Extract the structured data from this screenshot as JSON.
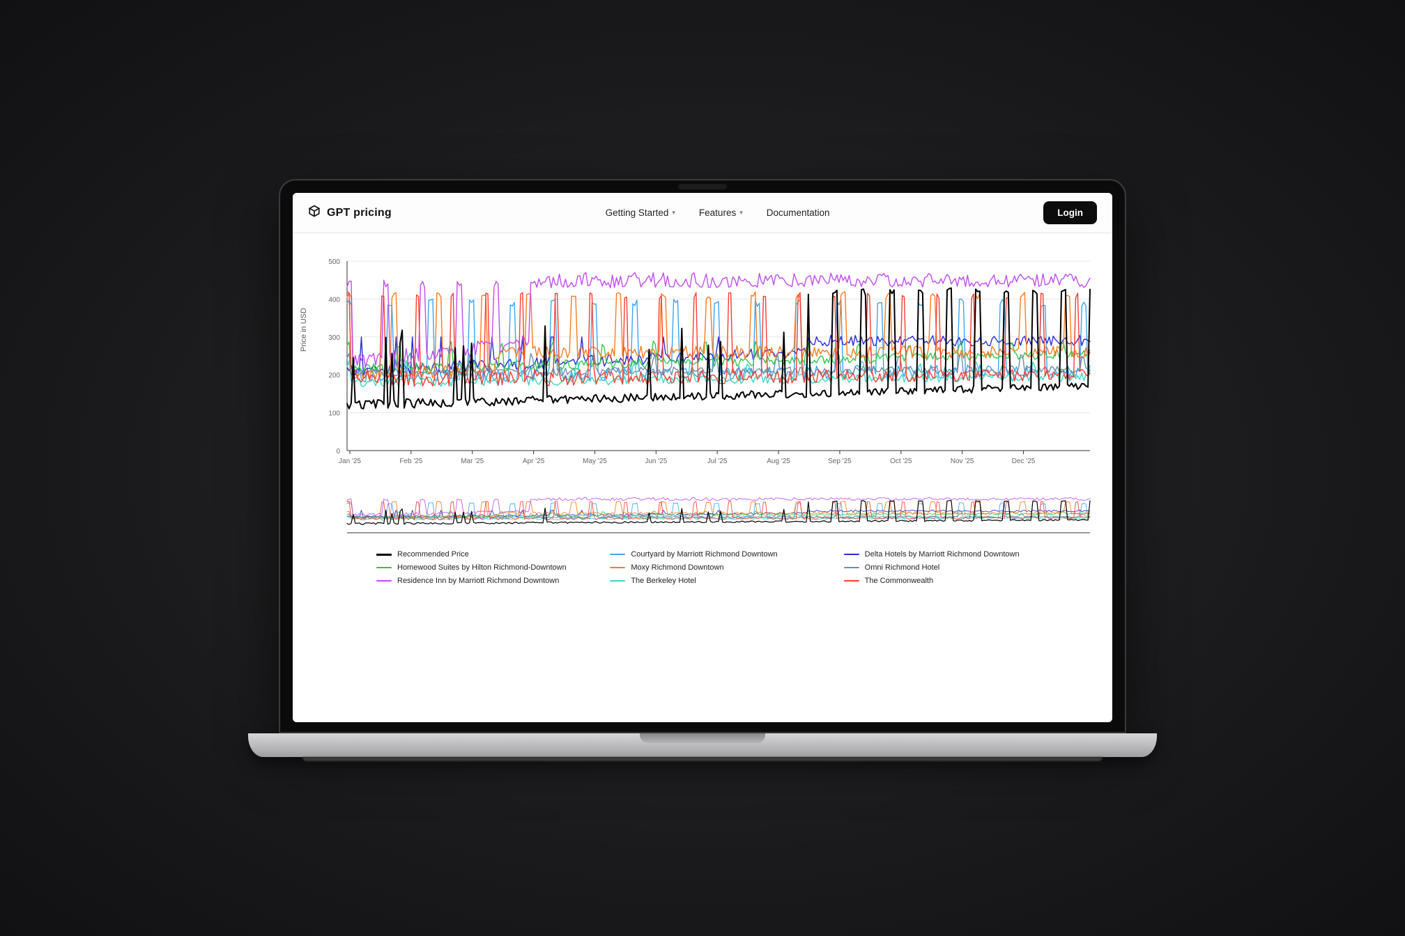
{
  "background_gradient": [
    "#2a2a2c",
    "#1a1a1c",
    "#111113"
  ],
  "device": "macbook",
  "topbar": {
    "brand": "GPT pricing",
    "nav": [
      {
        "label": "Getting Started",
        "dropdown": true
      },
      {
        "label": "Features",
        "dropdown": true
      },
      {
        "label": "Documentation",
        "dropdown": false
      }
    ],
    "login_label": "Login"
  },
  "chart": {
    "type": "line",
    "ylabel": "Price in USD",
    "title_fontsize": 11,
    "label_fontsize": 11,
    "ylim": [
      0,
      500
    ],
    "ytick_step": 100,
    "yticks": [
      0,
      100,
      200,
      300,
      400,
      500
    ],
    "xticks": [
      "Jan '25",
      "Feb '25",
      "Mar '25",
      "Apr '25",
      "May '25",
      "Jun '25",
      "Jul '25",
      "Aug '25",
      "Sep '25",
      "Oct '25",
      "Nov '25",
      "Dec '25"
    ],
    "x_count": 365,
    "background_color": "#ffffff",
    "grid_color": "#e6e6e6",
    "axis_color": "#333333",
    "tick_font_color": "#666666",
    "tick_fontsize": 10,
    "line_width_main": 1.4,
    "line_width_rec": 2.0,
    "mini_chart_height": 55,
    "series": [
      {
        "name": "Recommended Price",
        "color": "#000000",
        "width": 2.0,
        "pattern": {
          "base": 120,
          "drift_to": 170,
          "spike_height": 430,
          "spike_start_frac": 0.62,
          "spike_period": 14,
          "spike_width": 3,
          "noise": 18,
          "early_noise": 25
        }
      },
      {
        "name": "Courtyard by Marriott Richmond Downtown",
        "color": "#3aa6f2",
        "width": 1.4,
        "pattern": {
          "base": 200,
          "drift_to": 210,
          "spike_height": 400,
          "spike_start_frac": 0.0,
          "spike_period": 20,
          "spike_width": 3,
          "noise": 35,
          "early_noise": 40
        }
      },
      {
        "name": "Delta Hotels by Marriott Richmond Downtown",
        "color": "#2b2bd6",
        "width": 1.4,
        "pattern": {
          "base": 210,
          "drift_to": 290,
          "spike_height": 300,
          "spike_start_frac": 0.62,
          "spike_period": 14,
          "spike_width": 4,
          "noise": 28,
          "early_noise": 32,
          "plateau_after": 0.62,
          "plateau_value": 290
        }
      },
      {
        "name": "Homewood Suites by Hilton Richmond-Downtown",
        "color": "#2eca4a",
        "width": 1.4,
        "pattern": {
          "base": 215,
          "drift_to": 255,
          "spike_height": 290,
          "spike_start_frac": 0.0,
          "spike_period": 25,
          "spike_width": 2,
          "noise": 22,
          "early_noise": 28
        }
      },
      {
        "name": "Moxy Richmond Downtown",
        "color": "#ff7b1c",
        "width": 1.4,
        "pattern": {
          "base": 200,
          "drift_to": 250,
          "spike_height": 420,
          "spike_start_frac": 0.0,
          "spike_period": 22,
          "spike_width": 3,
          "noise": 32,
          "early_noise": 36,
          "plateau_after": 0.2,
          "plateau_value": 260
        }
      },
      {
        "name": "Omni Richmond Hotel",
        "color": "#6b8fa8",
        "width": 1.4,
        "pattern": {
          "base": 205,
          "drift_to": 215,
          "spike_height": 260,
          "spike_start_frac": 0.0,
          "spike_period": 30,
          "spike_width": 2,
          "noise": 20,
          "early_noise": 24
        }
      },
      {
        "name": "Residence Inn by Marriott Richmond Downtown",
        "color": "#c24bf0",
        "width": 1.4,
        "pattern": {
          "base": 230,
          "drift_to": 450,
          "spike_height": 450,
          "spike_start_frac": 0.0,
          "spike_period": 18,
          "spike_width": 3,
          "noise": 35,
          "early_noise": 45,
          "plateau_after": 0.25,
          "plateau_value": 450
        }
      },
      {
        "name": "The Berkeley Hotel",
        "color": "#3bd6c6",
        "width": 1.4,
        "pattern": {
          "base": 180,
          "drift_to": 195,
          "spike_height": 240,
          "spike_start_frac": 0.0,
          "spike_period": 28,
          "spike_width": 2,
          "noise": 22,
          "early_noise": 26
        }
      },
      {
        "name": "The Commonwealth",
        "color": "#ff3b2f",
        "width": 1.4,
        "pattern": {
          "base": 190,
          "drift_to": 200,
          "spike_height": 420,
          "spike_start_frac": 0.0,
          "spike_period": 17,
          "spike_width": 2,
          "noise": 30,
          "early_noise": 48
        }
      }
    ]
  },
  "legend_order": [
    "Recommended Price",
    "Courtyard by Marriott Richmond Downtown",
    "Delta Hotels by Marriott Richmond Downtown",
    "Homewood Suites by Hilton Richmond-Downtown",
    "Moxy Richmond Downtown",
    "Omni Richmond Hotel",
    "Residence Inn by Marriott Richmond Downtown",
    "The Berkeley Hotel",
    "The Commonwealth"
  ]
}
